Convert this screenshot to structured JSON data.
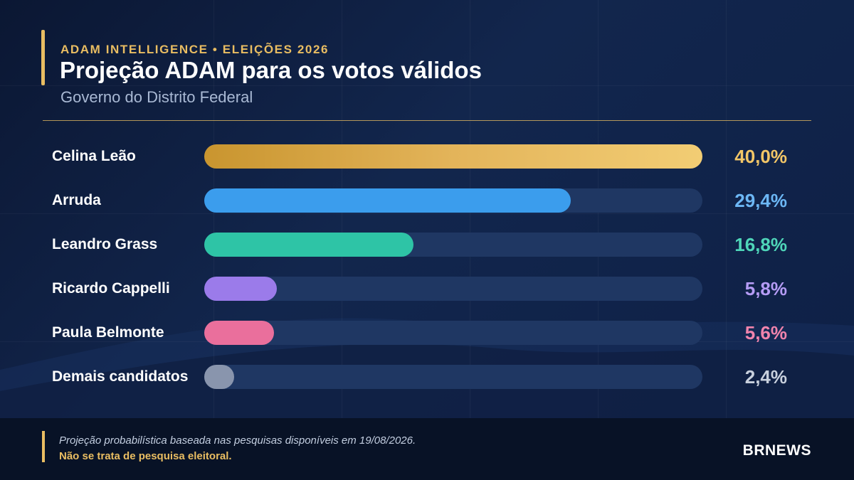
{
  "header": {
    "kicker": "ADAM INTELLIGENCE • ELEIÇÕES 2026",
    "title": "Projeção ADAM para os votos válidos",
    "subtitle": "Governo do Distrito Federal"
  },
  "colors": {
    "accent": "#e9bd62",
    "background": "#0d1e3f",
    "track": "#1f3763"
  },
  "chart_data": {
    "type": "bar",
    "orientation": "horizontal",
    "title": "Projeção ADAM para os votos válidos",
    "subtitle": "Governo do Distrito Federal",
    "xlim": [
      0,
      40
    ],
    "grid": false,
    "categories": [
      "Celina Leão",
      "Arruda",
      "Leandro Grass",
      "Ricardo Cappelli",
      "Paula Belmonte",
      "Demais candidatos"
    ],
    "values": [
      40.0,
      29.4,
      16.8,
      5.8,
      5.6,
      2.4
    ],
    "value_labels": [
      "40,0%",
      "29,4%",
      "16,8%",
      "5,8%",
      "5,6%",
      "2,4%"
    ],
    "bar_colors": [
      "#e9bd62",
      "#3b9ded",
      "#2ec4a6",
      "#9b7bea",
      "#ea6f9c",
      "#8995ad"
    ],
    "label_colors": [
      "#f2c667",
      "#6cb7f5",
      "#4fd6b9",
      "#b59cf5",
      "#f184ad",
      "#c8d0dd"
    ]
  },
  "footer": {
    "note": "Projeção probabilística baseada nas pesquisas disponíveis em 19/08/2026.",
    "disclaimer": "Não se trata de pesquisa eleitoral.",
    "brand": "BRNEWS"
  }
}
